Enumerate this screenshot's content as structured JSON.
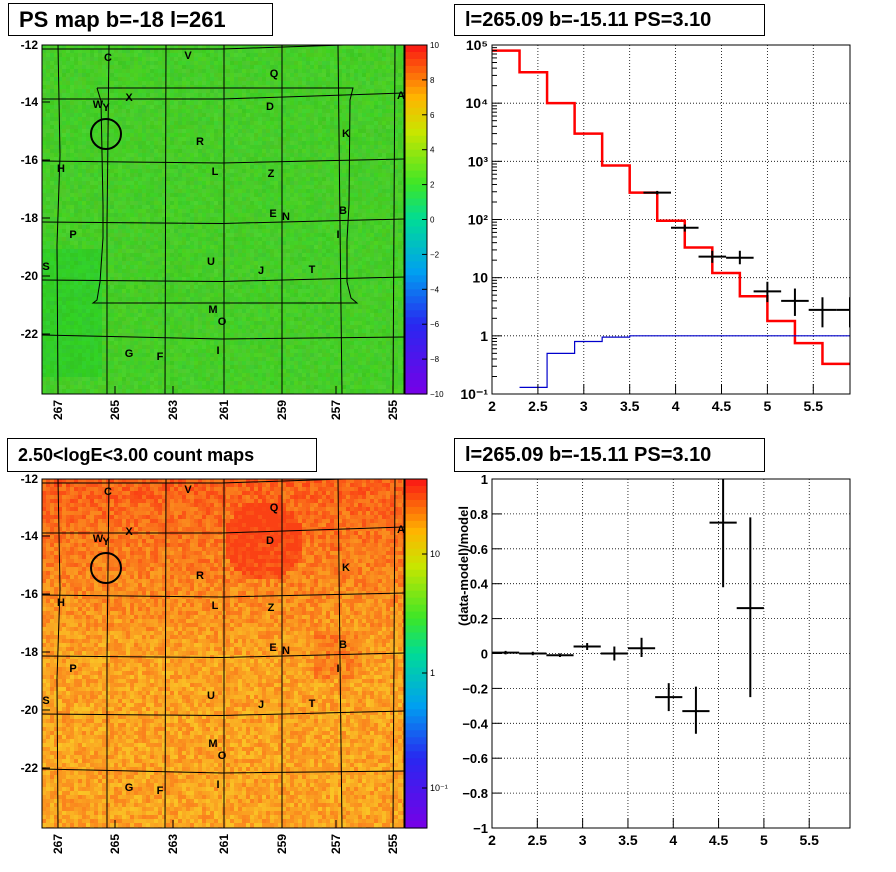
{
  "panels": {
    "ps_map": {
      "title": "PS map b=-18 l=261",
      "y_ticks": [
        "-12",
        "-14",
        "-16",
        "-18",
        "-20",
        "-22"
      ],
      "x_ticks": [
        "267",
        "265",
        "263",
        "261",
        "259",
        "257",
        "255"
      ],
      "colorbar_ticks": [
        "10",
        "8",
        "6",
        "4",
        "2",
        "0",
        "−2",
        "−4",
        "−6",
        "−8",
        "−10"
      ],
      "source_labels": [
        "C",
        "V",
        "Q",
        "A",
        "W",
        "Y",
        "X",
        "D",
        "R",
        "K",
        "H",
        "L",
        "Z",
        "E",
        "N",
        "B",
        "P",
        "I",
        "S",
        "U",
        "J",
        "T",
        "M",
        "O",
        "G",
        "F",
        "I"
      ]
    },
    "count_map": {
      "title": "2.50<logE<3.00 count maps",
      "y_ticks": [
        "-12",
        "-14",
        "-16",
        "-18",
        "-20",
        "-22"
      ],
      "x_ticks": [
        "267",
        "265",
        "263",
        "261",
        "259",
        "257",
        "255"
      ],
      "colorbar_ticks": [
        "10",
        "1",
        "10⁻¹"
      ],
      "source_labels": [
        "C",
        "V",
        "Q",
        "A",
        "W",
        "Y",
        "X",
        "D",
        "R",
        "K",
        "H",
        "L",
        "Z",
        "E",
        "N",
        "B",
        "P",
        "I",
        "S",
        "U",
        "J",
        "T",
        "M",
        "O",
        "G",
        "F",
        "I"
      ]
    },
    "spectrum": {
      "title": "l=265.09 b=-15.11 PS=3.10",
      "x_ticks": [
        "2",
        "2.5",
        "3",
        "3.5",
        "4",
        "4.5",
        "5",
        "5.5"
      ],
      "y_ticks": [
        "10⁵",
        "10⁴",
        "10³",
        "10²",
        "10",
        "1",
        "10⁻¹"
      ]
    },
    "residual": {
      "title": "l=265.09 b=-15.11 PS=3.10",
      "ylabel": "(data-model)/model",
      "x_ticks": [
        "2",
        "2.5",
        "3",
        "3.5",
        "4",
        "4.5",
        "5",
        "5.5"
      ],
      "y_ticks": [
        "1",
        "0.8",
        "0.6",
        "0.4",
        "0.2",
        "0",
        "−0.2",
        "−0.4",
        "−0.6",
        "−0.8",
        "−1"
      ]
    }
  },
  "colors": {
    "model": "#ff0000",
    "baseline": "#0000cc",
    "data": "#000000"
  },
  "chart_data": [
    {
      "type": "heatmap",
      "title": "PS map b=-18 l=261",
      "xlim": [
        267.8,
        254.6
      ],
      "ylim": [
        -23.7,
        -12
      ],
      "zlim": [
        -10,
        10
      ],
      "dominant_value": 1
    },
    {
      "type": "heatmap",
      "title": "2.50<logE<3.00 count maps",
      "xlim": [
        267.8,
        254.6
      ],
      "ylim": [
        -23.7,
        -12
      ],
      "zscale": "log",
      "zlim": [
        0.05,
        30
      ]
    },
    {
      "type": "line",
      "title": "l=265.09 b=-15.11 PS=3.10",
      "xlim": [
        2,
        5.9
      ],
      "ylim": [
        0.1,
        100000
      ],
      "yscale": "log",
      "grid": true,
      "series": [
        {
          "kind": "step",
          "edges": [
            2.0,
            2.3,
            2.6,
            2.9,
            3.2,
            3.5,
            3.8,
            4.1,
            4.4,
            4.7,
            5.0,
            5.3,
            5.6,
            5.9
          ],
          "values": [
            80000,
            34000,
            10000,
            3000,
            850,
            290,
            95,
            33,
            12,
            4.8,
            1.8,
            0.75,
            0.33
          ]
        },
        {
          "kind": "step",
          "edges": [
            2.3,
            2.6,
            2.9,
            3.2,
            3.5,
            5.9
          ],
          "values": [
            0.13,
            0.5,
            0.8,
            0.95,
            1.0
          ]
        },
        {
          "kind": "errorbar",
          "x": [
            3.8,
            4.1,
            4.4,
            4.7,
            5.0,
            5.3,
            5.6,
            5.9
          ],
          "y": [
            290,
            72,
            23,
            22,
            5.8,
            4,
            2.8,
            2.8
          ],
          "y_low": [
            270,
            62,
            18,
            17,
            3.8,
            2.2,
            1.4,
            1.4
          ],
          "y_high": [
            310,
            82,
            29,
            29,
            8.5,
            6.5,
            4.6,
            4.6
          ],
          "x_half_width": [
            0.15,
            0.15,
            0.15,
            0.15,
            0.15,
            0.15,
            0.15,
            0.15
          ]
        }
      ]
    },
    {
      "type": "scatter",
      "title": "l=265.09 b=-15.11 PS=3.10",
      "ylabel": "(data-model)/model",
      "xlim": [
        2,
        5.95
      ],
      "ylim": [
        -1,
        1
      ],
      "grid": true,
      "x": [
        2.15,
        2.45,
        2.75,
        3.05,
        3.35,
        3.65,
        3.95,
        4.25,
        4.55,
        4.85
      ],
      "y": [
        0.005,
        0.0,
        -0.01,
        0.04,
        0.0,
        0.03,
        -0.25,
        -0.33,
        0.75,
        0.26
      ],
      "y_low": [
        -0.005,
        -0.01,
        -0.02,
        0.02,
        -0.04,
        -0.02,
        -0.33,
        -0.46,
        0.38,
        -0.25
      ],
      "y_high": [
        0.015,
        0.01,
        0.0,
        0.06,
        0.04,
        0.09,
        -0.17,
        -0.19,
        1.0,
        0.78
      ],
      "x_half_width": [
        0.15,
        0.15,
        0.15,
        0.15,
        0.15,
        0.15,
        0.15,
        0.15,
        0.15,
        0.15
      ]
    }
  ]
}
